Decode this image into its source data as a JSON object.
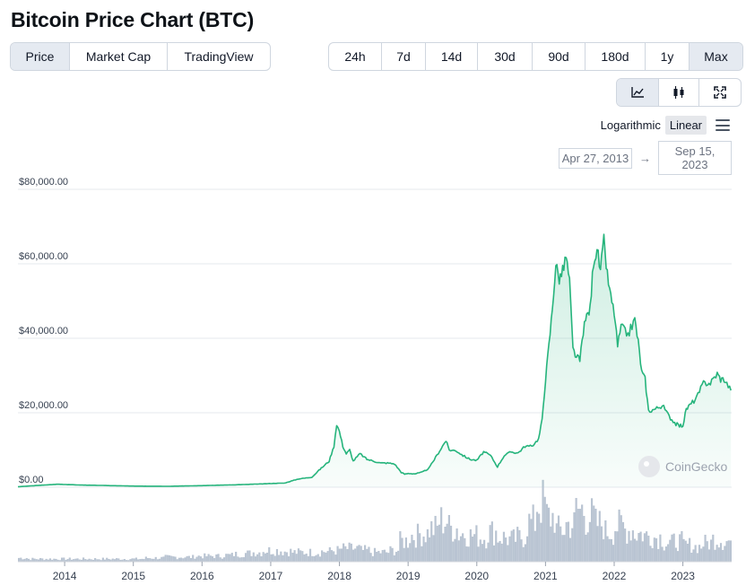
{
  "page_title": "Bitcoin Price Chart (BTC)",
  "chart_tabs": [
    {
      "label": "Price",
      "active": true
    },
    {
      "label": "Market Cap",
      "active": false
    },
    {
      "label": "TradingView",
      "active": false
    }
  ],
  "ranges": [
    {
      "label": "24h",
      "active": false
    },
    {
      "label": "7d",
      "active": false
    },
    {
      "label": "14d",
      "active": false
    },
    {
      "label": "30d",
      "active": false
    },
    {
      "label": "90d",
      "active": false
    },
    {
      "label": "180d",
      "active": false
    },
    {
      "label": "1y",
      "active": false
    },
    {
      "label": "Max",
      "active": true
    }
  ],
  "tools": [
    {
      "icon": "line-chart-icon",
      "active": true
    },
    {
      "icon": "candlestick-icon",
      "active": false
    },
    {
      "icon": "expand-icon",
      "active": false
    }
  ],
  "scale": {
    "logarithmic_label": "Logarithmic",
    "linear_label": "Linear",
    "active": "linear"
  },
  "date_range": {
    "from": "Apr 27, 2013",
    "to": "Sep 15, 2023"
  },
  "watermark": "CoinGecko",
  "colors": {
    "price_line": "#26b47c",
    "area_fill": "#e6f6ee",
    "volume": "#b9c4d2",
    "grid": "#e6e9ee"
  },
  "chart_data": {
    "type": "area",
    "series": [
      {
        "x": [
          2013.32,
          2013.9,
          2014.2,
          2014.6,
          2015.0,
          2015.5,
          2016.0,
          2016.5,
          2016.9,
          2017.0,
          2017.2,
          2017.4,
          2017.6,
          2017.7,
          2017.85,
          2017.92,
          2017.96,
          2018.0,
          2018.05,
          2018.1,
          2018.15,
          2018.2,
          2018.3,
          2018.4,
          2018.5,
          2018.6,
          2018.7,
          2018.8,
          2018.9,
          2018.95,
          2019.0,
          2019.1,
          2019.2,
          2019.3,
          2019.4,
          2019.5,
          2019.55,
          2019.6,
          2019.7,
          2019.8,
          2019.9,
          2020.0,
          2020.1,
          2020.2,
          2020.3,
          2020.4,
          2020.5,
          2020.6,
          2020.7,
          2020.8,
          2020.9,
          2020.95,
          2021.0,
          2021.05,
          2021.1,
          2021.15,
          2021.2,
          2021.25,
          2021.3,
          2021.35,
          2021.4,
          2021.45,
          2021.5,
          2021.55,
          2021.6,
          2021.65,
          2021.7,
          2021.75,
          2021.8,
          2021.85,
          2021.9,
          2021.95,
          2022.0,
          2022.05,
          2022.1,
          2022.2,
          2022.3,
          2022.35,
          2022.4,
          2022.45,
          2022.5,
          2022.6,
          2022.7,
          2022.8,
          2022.9,
          2022.95,
          2023.0,
          2023.05,
          2023.1,
          2023.2,
          2023.3,
          2023.4,
          2023.5,
          2023.55,
          2023.6,
          2023.7
        ],
        "y": [
          130,
          800,
          600,
          450,
          300,
          240,
          430,
          650,
          900,
          1000,
          1100,
          2200,
          2700,
          4500,
          7000,
          11000,
          17000,
          15000,
          11000,
          9000,
          10000,
          7000,
          9000,
          7500,
          7000,
          6500,
          6500,
          6300,
          4000,
          3500,
          3700,
          3600,
          4000,
          5000,
          8000,
          11000,
          12500,
          10000,
          9800,
          8500,
          7500,
          7200,
          9500,
          8500,
          5500,
          8500,
          9500,
          9200,
          11000,
          11000,
          13000,
          18000,
          29000,
          38000,
          48000,
          60000,
          56000,
          58000,
          62000,
          55000,
          37000,
          35000,
          34000,
          42000,
          46000,
          48000,
          61000,
          64000,
          58000,
          66000,
          57000,
          51000,
          47000,
          38000,
          43000,
          41000,
          45000,
          39000,
          31000,
          29000,
          20500,
          21000,
          22000,
          19000,
          17000,
          16500,
          16600,
          21000,
          22000,
          24000,
          28000,
          28000,
          30500,
          29000,
          29000,
          26000
        ],
        "name": ""
      }
    ],
    "volume": [
      4,
      3,
      3,
      3,
      3,
      3,
      3,
      3,
      3,
      3,
      3,
      3,
      3,
      4,
      4,
      5,
      5,
      5,
      6,
      6,
      6,
      7,
      8,
      9,
      10,
      12,
      12,
      11,
      10,
      10,
      10,
      11,
      12,
      14,
      14,
      12,
      10,
      10,
      12,
      22,
      28,
      30,
      35,
      44,
      36,
      30,
      28,
      26,
      32,
      26,
      24,
      26,
      42,
      62,
      48,
      34,
      40,
      55,
      48,
      40,
      32,
      38,
      34,
      30,
      28,
      26,
      20,
      22,
      18,
      16,
      20,
      24,
      22
    ],
    "ylim": [
      0,
      80000
    ],
    "y_ticks": [
      "$0.00",
      "$20,000.00",
      "$40,000.00",
      "$60,000.00",
      "$80,000.00"
    ],
    "y_tick_values": [
      0,
      20000,
      40000,
      60000,
      80000
    ],
    "x_ticks": [
      "2014",
      "2015",
      "2016",
      "2017",
      "2018",
      "2019",
      "2020",
      "2021",
      "2022",
      "2023"
    ],
    "x_tick_values": [
      2014,
      2015,
      2016,
      2017,
      2018,
      2019,
      2020,
      2021,
      2022,
      2023
    ],
    "xlim": [
      2013.32,
      2023.71
    ],
    "grid": true,
    "legend": "none",
    "title": "",
    "xlabel": "",
    "ylabel": ""
  }
}
